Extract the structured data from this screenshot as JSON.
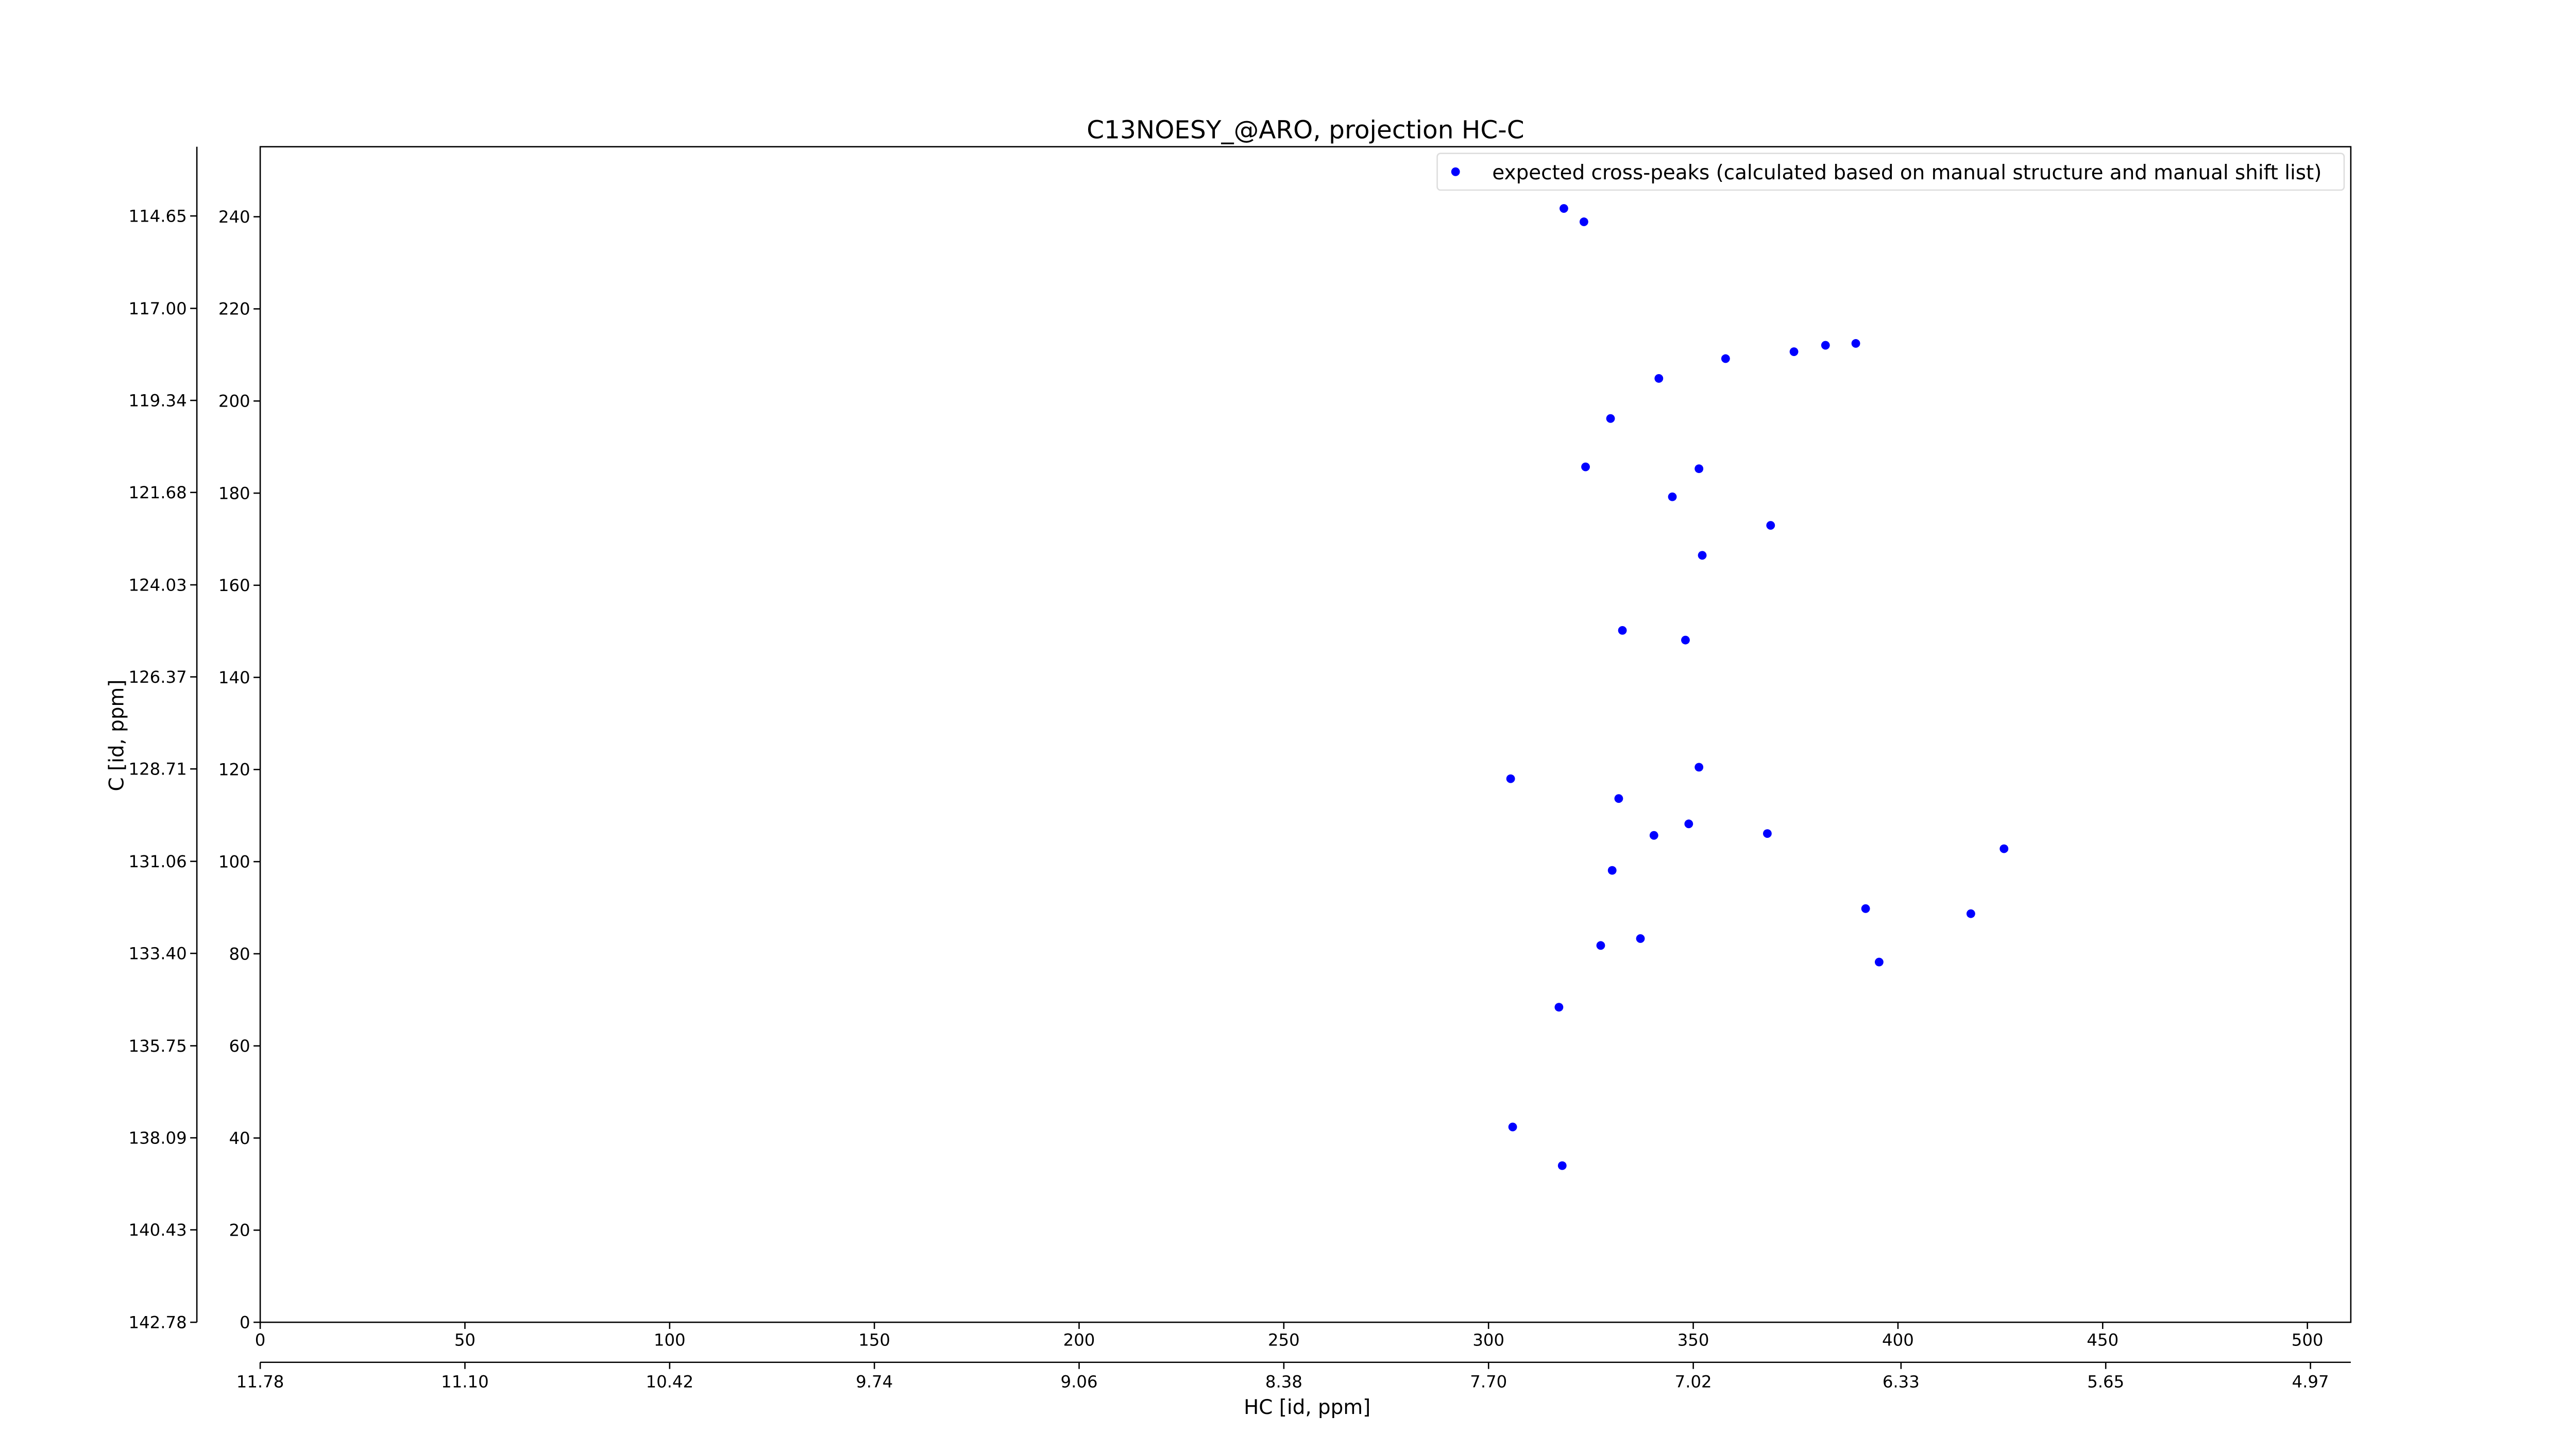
{
  "chart_data": {
    "type": "scatter",
    "title": "C13NOESY_@ARO, projection HC-C",
    "xlabel": "HC [id, ppm]",
    "ylabel": "C [id, ppm]",
    "xlim": [
      0,
      510.6
    ],
    "ylim": [
      0,
      255.2
    ],
    "xticks": [
      0,
      50,
      100,
      150,
      200,
      250,
      300,
      350,
      400,
      450,
      500
    ],
    "yticks": [
      0,
      20,
      40,
      60,
      80,
      100,
      120,
      140,
      160,
      180,
      200,
      220,
      240
    ],
    "x2lim": [
      11.78,
      4.836
    ],
    "x2ticks": [
      11.78,
      {
        "value": 11.1,
        "label": "11.10"
      },
      10.42,
      9.74,
      9.06,
      8.38,
      {
        "value": 7.7,
        "label": "7.70"
      },
      7.02,
      6.33,
      5.65,
      4.97
    ],
    "y2lim": [
      142.78,
      112.89
    ],
    "y2ticks": [
      142.78,
      140.43,
      138.09,
      135.75,
      {
        "value": 133.4,
        "label": "133.40"
      },
      131.06,
      128.71,
      126.37,
      124.03,
      121.68,
      119.34,
      {
        "value": 117,
        "label": "117.00"
      },
      114.65
    ],
    "grid": false,
    "legend": "upper right",
    "series": [
      {
        "name": "expected cross-peaks (calculated based on manual structure and manual shift list)",
        "color": "#0000ff",
        "x": [
          318.4,
          323.3,
          341.6,
          357.9,
          374.6,
          382.3,
          389.7,
          329.8,
          323.7,
          344.9,
          351.4,
          352.2,
          368.9,
          332.7,
          348.1,
          305.4,
          351.4,
          331.8,
          348.9,
          340.4,
          368.1,
          425.9,
          330.2,
          392.1,
          417.8,
          327.4,
          337.1,
          395.4,
          317.2,
          305.9,
          318.0
        ],
        "values": [
          241.8,
          238.9,
          204.9,
          209.2,
          210.7,
          212.1,
          212.5,
          196.2,
          185.7,
          179.2,
          185.3,
          166.5,
          173.0,
          150.2,
          148.1,
          118.0,
          120.5,
          113.7,
          108.2,
          105.7,
          106.1,
          102.8,
          98.1,
          89.8,
          88.7,
          81.8,
          83.3,
          78.2,
          68.4,
          42.4,
          34.0
        ]
      }
    ]
  }
}
